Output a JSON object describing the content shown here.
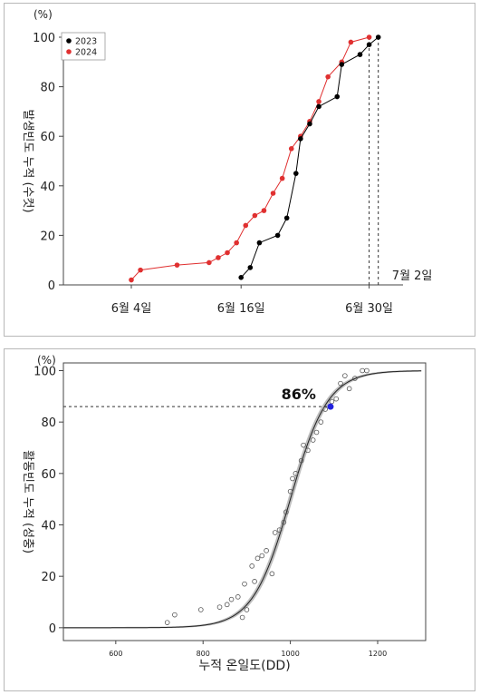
{
  "chart_data": [
    {
      "type": "line",
      "unit_label": "(%)",
      "ylabel": "발생빈도 누적 (수컷)",
      "ylim": [
        0,
        100
      ],
      "yticks": [
        0,
        20,
        40,
        60,
        80,
        100
      ],
      "x_unit": "days since 6월 4일 (date axis)",
      "x_tick_labels": [
        {
          "x": 0,
          "label": "6월 4일"
        },
        {
          "x": 12,
          "label": "6월 16일"
        },
        {
          "x": 26,
          "label": "6월 30일"
        }
      ],
      "annotations": [
        {
          "x": 28,
          "label": "7월 2일"
        }
      ],
      "legend_position": "top-left",
      "series": [
        {
          "name": "2023",
          "color": "#000000",
          "points": [
            [
              12,
              3
            ],
            [
              13,
              7
            ],
            [
              14,
              17
            ],
            [
              16,
              20
            ],
            [
              17,
              27
            ],
            [
              18,
              45
            ],
            [
              18.5,
              59
            ],
            [
              19.5,
              65
            ],
            [
              20.5,
              72
            ],
            [
              22.5,
              76
            ],
            [
              23,
              89
            ],
            [
              25,
              93
            ],
            [
              26,
              97
            ],
            [
              27,
              100
            ]
          ]
        },
        {
          "name": "2024",
          "color": "#e03030",
          "points": [
            [
              0,
              2
            ],
            [
              1,
              6
            ],
            [
              5,
              8
            ],
            [
              8.5,
              9
            ],
            [
              9.5,
              11
            ],
            [
              10.5,
              13
            ],
            [
              11.5,
              17
            ],
            [
              12.5,
              24
            ],
            [
              13.5,
              28
            ],
            [
              14.5,
              30
            ],
            [
              15.5,
              37
            ],
            [
              16.5,
              43
            ],
            [
              17.5,
              55
            ],
            [
              18.5,
              60
            ],
            [
              19.5,
              66
            ],
            [
              20.5,
              74
            ],
            [
              21.5,
              84
            ],
            [
              23,
              90
            ],
            [
              24,
              98
            ],
            [
              26,
              100
            ]
          ]
        }
      ],
      "vlines": [
        26,
        27
      ]
    },
    {
      "type": "scatter",
      "unit_label": "(%)",
      "ylabel": "활동빈도 누적 (성충)",
      "xlabel": "누적 온일도(DD)",
      "xlim": [
        480,
        1310
      ],
      "xticks": [
        600,
        800,
        1000,
        1200
      ],
      "ylim": [
        -5,
        103
      ],
      "yticks": [
        0,
        20,
        40,
        60,
        80,
        100
      ],
      "marker": {
        "x": 1092,
        "y": 86,
        "label": "86%",
        "color": "#2222dd"
      },
      "curve": {
        "model": "logistic",
        "midpoint": 1000,
        "scale": 43,
        "x_from": 480,
        "x_to": 1300
      },
      "observed_points": [
        [
          718,
          2
        ],
        [
          735,
          5
        ],
        [
          795,
          7
        ],
        [
          838,
          8
        ],
        [
          855,
          9
        ],
        [
          865,
          11
        ],
        [
          880,
          12
        ],
        [
          890,
          4
        ],
        [
          895,
          17
        ],
        [
          900,
          7
        ],
        [
          912,
          24
        ],
        [
          918,
          18
        ],
        [
          925,
          27
        ],
        [
          935,
          28
        ],
        [
          945,
          30
        ],
        [
          958,
          21
        ],
        [
          965,
          37
        ],
        [
          975,
          38
        ],
        [
          985,
          41
        ],
        [
          990,
          45
        ],
        [
          1000,
          53
        ],
        [
          1005,
          58
        ],
        [
          1012,
          60
        ],
        [
          1025,
          65
        ],
        [
          1030,
          71
        ],
        [
          1040,
          69
        ],
        [
          1052,
          73
        ],
        [
          1060,
          76
        ],
        [
          1070,
          80
        ],
        [
          1080,
          85
        ],
        [
          1095,
          88
        ],
        [
          1105,
          89
        ],
        [
          1115,
          95
        ],
        [
          1125,
          98
        ],
        [
          1135,
          93
        ],
        [
          1148,
          97
        ],
        [
          1165,
          100
        ],
        [
          1175,
          100
        ]
      ]
    }
  ]
}
